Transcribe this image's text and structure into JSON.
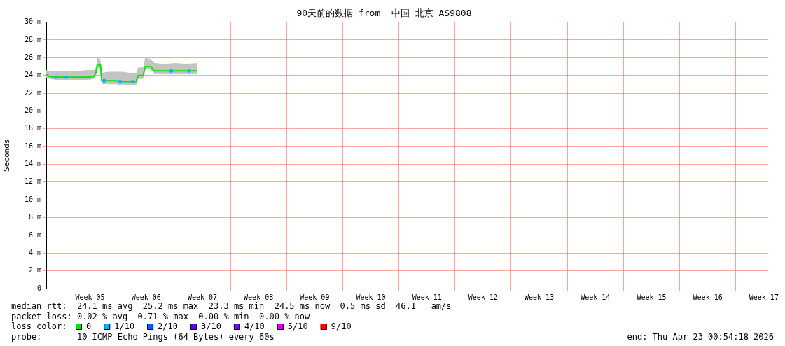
{
  "chart_data": {
    "type": "line",
    "title": "90天前的数据 from  中国 北京 AS9808",
    "ylabel": "Seconds",
    "xlim": [
      "2026-01-23T00:54",
      "2026-04-23T00:54"
    ],
    "xticks": [
      {
        "value": "2026-01-25",
        "label": null
      },
      {
        "value": "2026-01-28T12:00",
        "label": "Week 05"
      },
      {
        "value": "2026-02-01",
        "label": null
      },
      {
        "value": "2026-02-04T12:00",
        "label": "Week 06"
      },
      {
        "value": "2026-02-08",
        "label": null
      },
      {
        "value": "2026-02-11T12:00",
        "label": "Week 07"
      },
      {
        "value": "2026-02-15",
        "label": null
      },
      {
        "value": "2026-02-18T12:00",
        "label": "Week 08"
      },
      {
        "value": "2026-02-22",
        "label": null
      },
      {
        "value": "2026-02-25T12:00",
        "label": "Week 09"
      },
      {
        "value": "2026-03-01",
        "label": null
      },
      {
        "value": "2026-03-04T12:00",
        "label": "Week 10"
      },
      {
        "value": "2026-03-08",
        "label": null
      },
      {
        "value": "2026-03-11T12:00",
        "label": "Week 11"
      },
      {
        "value": "2026-03-15",
        "label": null
      },
      {
        "value": "2026-03-18T12:00",
        "label": "Week 12"
      },
      {
        "value": "2026-03-22",
        "label": null
      },
      {
        "value": "2026-03-25T12:00",
        "label": "Week 13"
      },
      {
        "value": "2026-03-29",
        "label": null
      },
      {
        "value": "2026-04-01T12:00",
        "label": "Week 14"
      },
      {
        "value": "2026-04-05",
        "label": null
      },
      {
        "value": "2026-04-08T12:00",
        "label": "Week 15"
      },
      {
        "value": "2026-04-12",
        "label": null
      },
      {
        "value": "2026-04-15T12:00",
        "label": "Week 16"
      },
      {
        "value": "2026-04-19",
        "label": null
      },
      {
        "value": "2026-04-22T12:00",
        "label": "Week 17"
      }
    ],
    "ylim": [
      0,
      30
    ],
    "yticks": [
      0,
      {
        "value": 2,
        "label": "2 m"
      },
      {
        "value": 4,
        "label": "4 m"
      },
      {
        "value": 6,
        "label": "6 m"
      },
      {
        "value": 8,
        "label": "8 m"
      },
      {
        "value": 10,
        "label": "10 m"
      },
      {
        "value": 12,
        "label": "12 m"
      },
      {
        "value": 14,
        "label": "14 m"
      },
      {
        "value": 16,
        "label": "16 m"
      },
      {
        "value": 18,
        "label": "18 m"
      },
      {
        "value": 20,
        "label": "20 m"
      },
      {
        "value": 22,
        "label": "22 m"
      },
      {
        "value": 24,
        "label": "24 m"
      },
      {
        "value": 26,
        "label": "26 m"
      },
      {
        "value": 28,
        "label": "28 m"
      },
      {
        "value": 30,
        "label": "30 m"
      }
    ],
    "grid": true,
    "legend": "bottom",
    "legend_title": "loss color:",
    "line_style": "solid",
    "marker": "none",
    "series": [
      {
        "name": "0",
        "color": "#00e600",
        "x": [
          "2026-01-23T00:54",
          "2026-01-23T09:00",
          "2026-01-24T06:00",
          "2026-01-25T14:00",
          "2026-01-26T21:00",
          "2026-01-28T05:00",
          "2026-01-29T00:00",
          "2026-01-29T06:00",
          "2026-01-29T10:00",
          "2026-01-29T19:00",
          "2026-01-29T23:00",
          "2026-01-30T18:00",
          "2026-01-31T17:00",
          "2026-02-01T14:00",
          "2026-02-02T11:00",
          "2026-02-03T06:00",
          "2026-02-03T12:00",
          "2026-02-04T03:00",
          "2026-02-04T09:00",
          "2026-02-05T02:00",
          "2026-02-05T13:00",
          "2026-02-06T20:00",
          "2026-02-08T04:00",
          "2026-02-09T11:00",
          "2026-02-10T21:00"
        ],
        "values": [
          24.1,
          23.9,
          23.8,
          23.8,
          23.8,
          23.8,
          23.9,
          24.4,
          25.2,
          25.2,
          23.4,
          23.4,
          23.4,
          23.3,
          23.3,
          23.3,
          24.0,
          24.0,
          25.0,
          25.0,
          24.5,
          24.5,
          24.5,
          24.5,
          24.5
        ],
        "upper": [
          24.6,
          24.5,
          24.5,
          24.5,
          24.5,
          24.6,
          24.6,
          25.0,
          26.0,
          25.8,
          24.3,
          24.4,
          24.4,
          24.4,
          24.3,
          24.3,
          24.9,
          24.9,
          26.0,
          25.8,
          25.4,
          25.3,
          25.4,
          25.3,
          25.4
        ],
        "lower": [
          23.7,
          23.6,
          23.5,
          23.5,
          23.5,
          23.5,
          23.6,
          24.0,
          24.8,
          24.8,
          23.0,
          23.0,
          23.0,
          22.9,
          22.9,
          22.9,
          23.6,
          23.6,
          24.7,
          24.6,
          24.2,
          24.2,
          24.2,
          24.2,
          24.2
        ]
      },
      {
        "name": "1/10",
        "color": "#00b4ff",
        "type": "scatter",
        "marker": "square",
        "x": [
          "2026-01-24T06:00",
          "2026-01-25T13:00",
          "2026-01-30T06:00",
          "2026-02-01T06:00",
          "2026-02-02T20:00",
          "2026-02-07T15:00",
          "2026-02-09T20:00"
        ],
        "values": [
          23.8,
          23.8,
          23.4,
          23.3,
          23.3,
          24.5,
          24.5
        ]
      },
      {
        "name": "2/10",
        "color": "#0059ff"
      },
      {
        "name": "3/10",
        "color": "#5e00ff"
      },
      {
        "name": "4/10",
        "color": "#7e00ff"
      },
      {
        "name": "5/10",
        "color": "#dd00ff"
      },
      {
        "name": "9/10",
        "color": "#ff0000"
      }
    ],
    "annotations": [
      "median rtt:  24.1 ms avg  25.2 ms max  23.3 ms min  24.5 ms now  0.5 ms sd  46.1   am/s",
      "packet loss: 0.02 % avg  0.71 % max  0.00 % min  0.00 % now",
      "probe:       10 ICMP Echo Pings (64 Bytes) every 60s",
      "end: Thu Apr 23 00:54:18 2026"
    ]
  }
}
